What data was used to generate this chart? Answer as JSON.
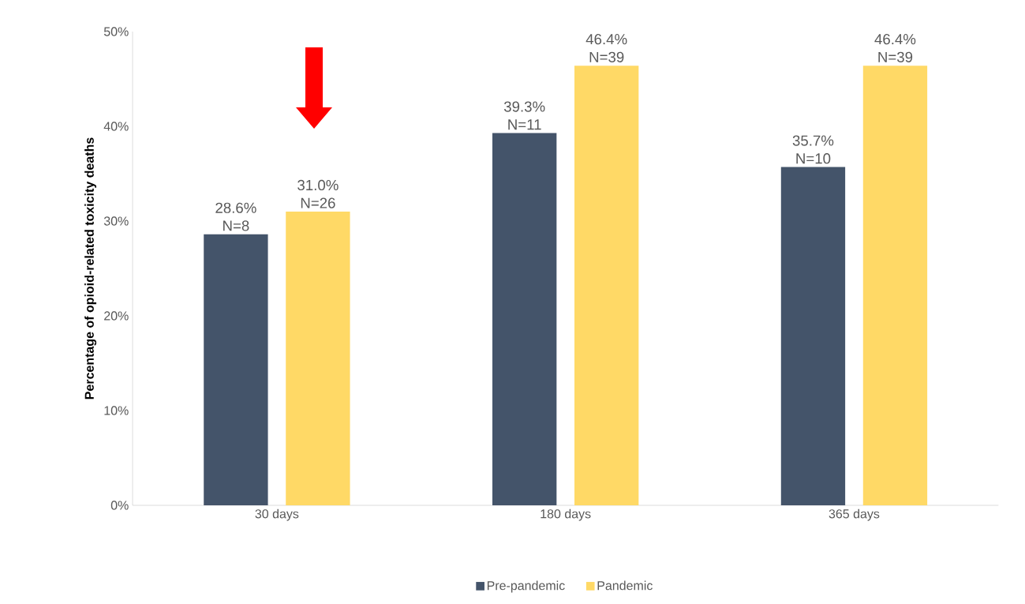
{
  "chart_data": {
    "type": "bar",
    "ylabel": "Percentage of opioid-related  toxicity deaths",
    "categories": [
      "30 days",
      "180 days",
      "365 days"
    ],
    "series": [
      {
        "name": "Pre-pandemic",
        "color": "#44546a",
        "values": [
          28.6,
          39.3,
          35.7
        ],
        "value_labels": [
          "28.6% N=8",
          "39.3% N=11",
          "35.7% N=10"
        ]
      },
      {
        "name": "Pandemic",
        "color": "#ffd966",
        "values": [
          31.0,
          46.4,
          46.4
        ],
        "value_labels": [
          "31.0% N=26",
          "46.4% N=39",
          "46.4% N=39"
        ]
      }
    ],
    "ylim": [
      0,
      50
    ],
    "yticks": [
      {
        "value": 0,
        "label": "0%"
      },
      {
        "value": 10,
        "label": "10%"
      },
      {
        "value": 20,
        "label": "20%"
      },
      {
        "value": 30,
        "label": "30%"
      },
      {
        "value": 40,
        "label": "40%"
      },
      {
        "value": 50,
        "label": "50%"
      }
    ],
    "grid": false,
    "legend": "bottom"
  }
}
